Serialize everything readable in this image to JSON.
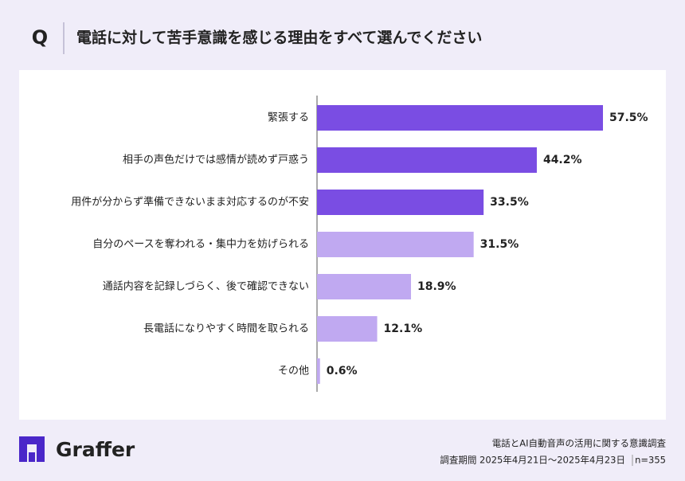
{
  "header": {
    "q": "Q",
    "title": "電話に対して苦手意識を感じる理由をすべて選んでください"
  },
  "chart_data": {
    "type": "bar",
    "orientation": "horizontal",
    "categories": [
      "緊張する",
      "相手の声色だけでは感情が読めず戸惑う",
      "用件が分からず準備できないまま対応するのが不安",
      "自分のペースを奪われる・集中力を妨げられる",
      "通話内容を記録しづらく、後で確認できない",
      "長電話になりやすく時間を取られる",
      "その他"
    ],
    "values": [
      57.5,
      44.2,
      33.5,
      31.5,
      18.9,
      12.1,
      0.6
    ],
    "value_labels": [
      "57.5%",
      "44.2%",
      "33.5%",
      "31.5%",
      "18.9%",
      "12.1%",
      "0.6%"
    ],
    "colors": [
      "#7a4de3",
      "#7a4de3",
      "#7a4de3",
      "#c0a9f1",
      "#c0a9f1",
      "#c0a9f1",
      "#c0a9f1"
    ]
  },
  "footer": {
    "brand": "Graffer",
    "survey": "電話とAI自動音声の活用に関する意識調査",
    "period": "調査期間 2025年4月21日〜2025年4月23日",
    "sample": "n=355"
  }
}
